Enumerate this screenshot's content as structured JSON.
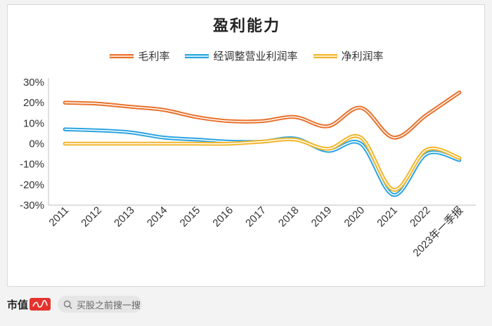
{
  "footer": {
    "brand_text": "市值",
    "search_placeholder": "买股之前搜一搜"
  },
  "colors": {
    "gross_margin": "#e8702a",
    "operating_margin": "#2aa4e0",
    "net_margin": "#f2b52a"
  },
  "chart_data": {
    "type": "line",
    "title": "盈利能力",
    "categories": [
      "2011",
      "2012",
      "2013",
      "2014",
      "2015",
      "2016",
      "2017",
      "2018",
      "2019",
      "2020",
      "2021",
      "2022",
      "2023年一季报"
    ],
    "ylim": [
      -30,
      30
    ],
    "yticks": [
      30,
      20,
      10,
      0,
      -10,
      -20,
      -30
    ],
    "ytick_labels": [
      "30%",
      "20%",
      "10%",
      "0%",
      "-10%",
      "-20%",
      "-30%"
    ],
    "grid": false,
    "legend_position": "top",
    "series": [
      {
        "name": "毛利率",
        "color_key": "gross_margin",
        "values": [
          20,
          19.5,
          18,
          16.5,
          13,
          11,
          11,
          13,
          8.5,
          17.5,
          3,
          14,
          25
        ]
      },
      {
        "name": "经调整营业利润率",
        "color_key": "operating_margin",
        "values": [
          7,
          6.5,
          5.5,
          3,
          2,
          1,
          1,
          2.5,
          -3.5,
          0,
          -25,
          -5,
          -8
        ]
      },
      {
        "name": "净利润率",
        "color_key": "net_margin",
        "values": [
          0,
          0,
          0,
          0,
          0,
          0,
          1,
          2,
          -2.5,
          3,
          -22.5,
          -3,
          -7
        ]
      }
    ]
  }
}
